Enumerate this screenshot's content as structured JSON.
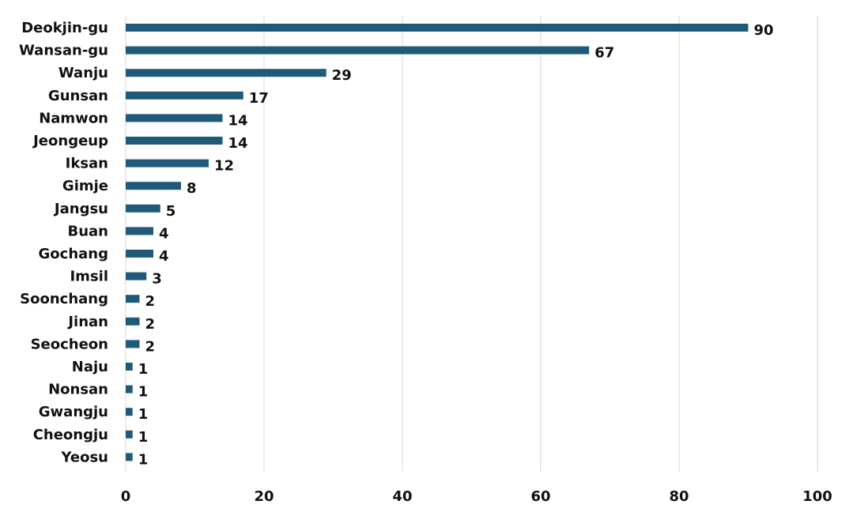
{
  "chart_data": {
    "type": "bar",
    "orientation": "horizontal",
    "title": "",
    "xlabel": "",
    "ylabel": "",
    "categories": [
      "Deokjin-gu",
      "Wansan-gu",
      "Wanju",
      "Gunsan",
      "Namwon",
      "Jeongeup",
      "Iksan",
      "Gimje",
      "Jangsu",
      "Buan",
      "Gochang",
      "Imsil",
      "Soonchang",
      "Jinan",
      "Seocheon",
      "Naju",
      "Nonsan",
      "Gwangju",
      "Cheongju",
      "Yeosu"
    ],
    "values": [
      90,
      67,
      29,
      17,
      14,
      14,
      12,
      8,
      5,
      4,
      4,
      3,
      2,
      2,
      2,
      1,
      1,
      1,
      1,
      1
    ],
    "xlim": [
      0,
      100
    ],
    "xticks": [
      0,
      20,
      40,
      60,
      80,
      100
    ],
    "grid": "vertical",
    "legend": "none",
    "bar_color": "#1f5b78",
    "grid_color": "#d9d9d9"
  }
}
